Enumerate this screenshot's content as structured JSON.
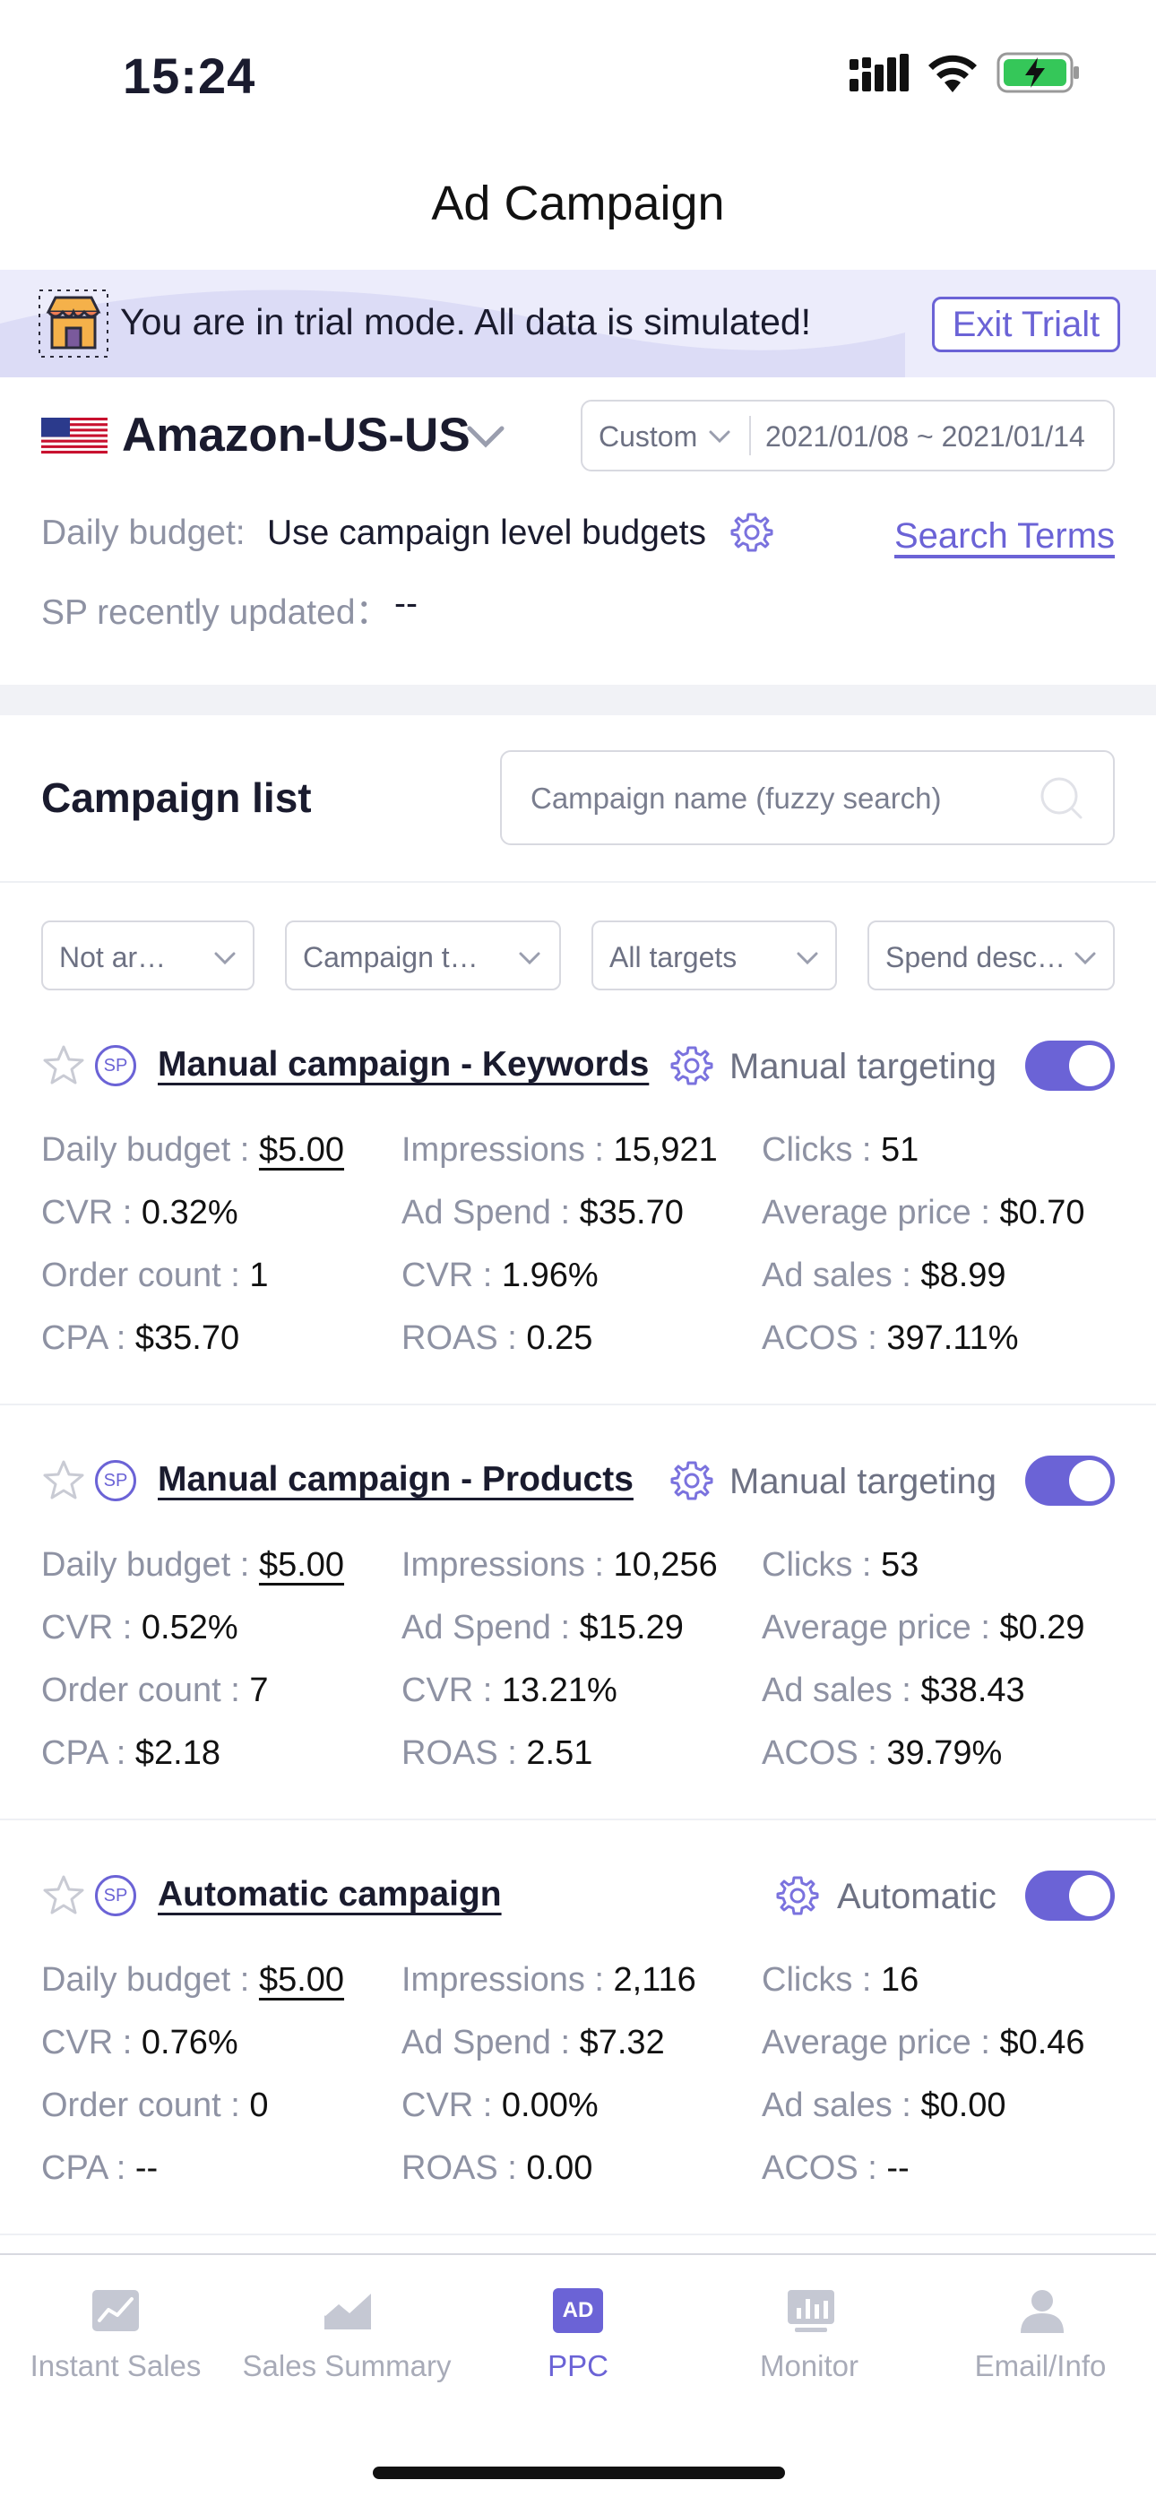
{
  "status_bar": {
    "time": "15:24"
  },
  "nav": {
    "title": "Ad Campaign"
  },
  "trial_banner": {
    "message": "You are in trial mode. All data is simulated!",
    "exit_label": "Exit Trialt"
  },
  "store": {
    "name": "Amazon-US-US",
    "date_mode": "Custom",
    "date_range": "2021/01/08 ~ 2021/01/14"
  },
  "budget": {
    "label": "Daily budget:",
    "value": "Use campaign level budgets",
    "search_terms": "Search Terms"
  },
  "sp_update": {
    "label": "SP recently updated：",
    "value": "--"
  },
  "campaign_list": {
    "title": "Campaign list",
    "search_placeholder": "Campaign name (fuzzy search)"
  },
  "filters": [
    "Not ar…",
    "Campaign t…",
    "All targets",
    "Spend desc…"
  ],
  "badge": "SP",
  "campaigns": [
    {
      "name": "Manual campaign - Keywords",
      "type": "Manual targeting",
      "enabled": true,
      "metrics": [
        {
          "label": "Daily budget :",
          "value": "$5.00"
        },
        {
          "label": "Impressions :",
          "value": "15,921"
        },
        {
          "label": "Clicks :",
          "value": "51"
        },
        {
          "label": "CVR :",
          "value": "0.32%"
        },
        {
          "label": "Ad Spend :",
          "value": "$35.70"
        },
        {
          "label": "Average price :",
          "value": "$0.70"
        },
        {
          "label": "Order count :",
          "value": "1"
        },
        {
          "label": "CVR :",
          "value": "1.96%"
        },
        {
          "label": "Ad sales :",
          "value": "$8.99"
        },
        {
          "label": "CPA :",
          "value": "$35.70"
        },
        {
          "label": "ROAS :",
          "value": "0.25"
        },
        {
          "label": "ACOS :",
          "value": "397.11%"
        }
      ]
    },
    {
      "name": "Manual campaign - Products",
      "type": "Manual targeting",
      "enabled": true,
      "metrics": [
        {
          "label": "Daily budget :",
          "value": "$5.00"
        },
        {
          "label": "Impressions :",
          "value": "10,256"
        },
        {
          "label": "Clicks :",
          "value": "53"
        },
        {
          "label": "CVR :",
          "value": "0.52%"
        },
        {
          "label": "Ad Spend :",
          "value": "$15.29"
        },
        {
          "label": "Average price :",
          "value": "$0.29"
        },
        {
          "label": "Order count :",
          "value": "7"
        },
        {
          "label": "CVR :",
          "value": "13.21%"
        },
        {
          "label": "Ad sales :",
          "value": "$38.43"
        },
        {
          "label": "CPA :",
          "value": "$2.18"
        },
        {
          "label": "ROAS :",
          "value": "2.51"
        },
        {
          "label": "ACOS :",
          "value": "39.79%"
        }
      ]
    },
    {
      "name": "Automatic campaign",
      "type": "Automatic",
      "enabled": true,
      "metrics": [
        {
          "label": "Daily budget :",
          "value": "$5.00"
        },
        {
          "label": "Impressions :",
          "value": "2,116"
        },
        {
          "label": "Clicks :",
          "value": "16"
        },
        {
          "label": "CVR :",
          "value": "0.76%"
        },
        {
          "label": "Ad Spend :",
          "value": "$7.32"
        },
        {
          "label": "Average price :",
          "value": "$0.46"
        },
        {
          "label": "Order count :",
          "value": "0"
        },
        {
          "label": "CVR :",
          "value": "0.00%"
        },
        {
          "label": "Ad sales :",
          "value": "$0.00"
        },
        {
          "label": "CPA :",
          "value": "--"
        },
        {
          "label": "ROAS :",
          "value": "0.00"
        },
        {
          "label": "ACOS :",
          "value": "--"
        }
      ]
    }
  ],
  "tabbar": {
    "tabs": [
      {
        "label": "Instant Sales",
        "icon": "trend-chart-icon",
        "active": false
      },
      {
        "label": "Sales Summary",
        "icon": "area-chart-icon",
        "active": false
      },
      {
        "label": "PPC",
        "icon": "ad-icon",
        "active": true
      },
      {
        "label": "Monitor",
        "icon": "monitor-icon",
        "active": false
      },
      {
        "label": "Email/Info",
        "icon": "person-icon",
        "active": false
      }
    ],
    "ad_glyph": "AD"
  },
  "colors": {
    "accent": "#6b63d6",
    "text": "#1a1b2e",
    "muted": "#8e92a3",
    "banner_bg": "#ececfb"
  }
}
